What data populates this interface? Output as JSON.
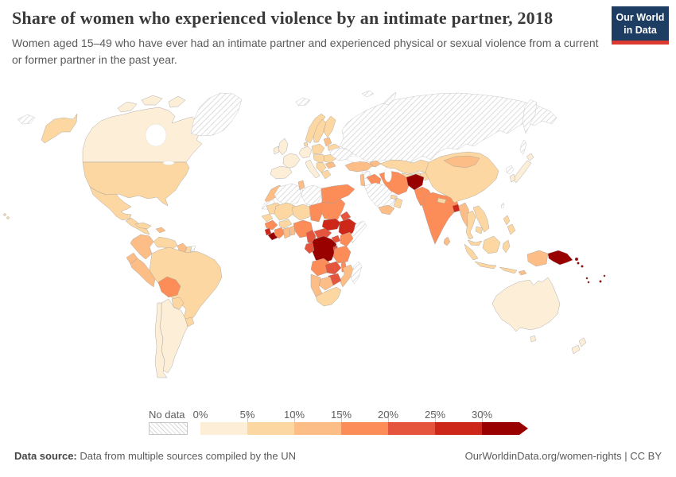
{
  "header": {
    "title": "Share of women who experienced violence by an intimate partner, 2018",
    "subtitle": "Women aged 15–49 who have ever had an intimate partner and experienced physical or sexual violence from a current or former partner in the past year.",
    "logo": {
      "line1": "Our World",
      "line2": "in Data"
    }
  },
  "legend": {
    "no_data_label": "No data",
    "tick_labels": [
      "0%",
      "5%",
      "10%",
      "15%",
      "20%",
      "25%",
      "30%"
    ],
    "bucket_colors": {
      "b1": "#fdeed7",
      "b2": "#fdd7a1",
      "b3": "#fdbd86",
      "b4": "#fc8d59",
      "b5": "#e5553d",
      "b6": "#cc2718",
      "b7": "#990000"
    },
    "no_data_hatch_color": "#d4d4d4",
    "accent_navy": "#1d3d63",
    "accent_red": "#dc3a30"
  },
  "chart_data": {
    "type": "heatmap",
    "title": "Share of women who experienced violence by an intimate partner, 2018",
    "unit": "%",
    "legend_position": "bottom",
    "bucket_ranges": {
      "b1": "0-5%",
      "b2": "5-10%",
      "b3": "10-15%",
      "b4": "15-20%",
      "b5": "20-25%",
      "b6": "25-30%",
      "b7": "30%+",
      "no-data": "No data"
    },
    "country_buckets": {
      "alaska": "b2",
      "usa": "b2",
      "canada": "b1",
      "greenland": "no-data",
      "mexico": "b2",
      "central-america": "b2",
      "cuba": "b2",
      "hispaniola": "b3",
      "hawaii": "b2",
      "colombia": "b3",
      "venezuela": "b2",
      "guyana": "b3",
      "suriname": "b2",
      "french-guiana": "no-data",
      "ecuador": "b3",
      "peru": "b3",
      "brazil": "b2",
      "bolivia": "b4",
      "paraguay": "b2",
      "uruguay": "b2",
      "argentina": "b1",
      "chile": "b1",
      "iceland": "no-data",
      "uk": "b1",
      "ireland": "b1",
      "norway": "b2",
      "sweden": "b2",
      "finland": "b2",
      "denmark": "b2",
      "baltics": "b3",
      "belarus": "b2",
      "poland": "b2",
      "germany": "b1",
      "france": "b1",
      "iberia": "b1",
      "italy": "b1",
      "central-europe": "b2",
      "romania": "b2",
      "balkans": "b2",
      "bulgaria": "b3",
      "greece": "b2",
      "ukraine": "no-data",
      "russia": "no-data",
      "chukotka": "no-data",
      "kamchatka": "no-data",
      "sakhalin": "no-data",
      "svalbard": "no-data",
      "novaya-zemlya": "no-data",
      "kazakhstan": "b2",
      "uzbekistan": "b2",
      "turkmenistan": "b2",
      "kyrgyzstan-tajikistan": "b2",
      "caucasus": "b3",
      "turkey": "b3",
      "syria": "no-data",
      "iraq": "b4",
      "levant": "b3",
      "saudi-arabia": "no-data",
      "yemen": "b3",
      "oman": "b2",
      "uae": "b2",
      "iran": "b4",
      "afghanistan": "b7",
      "pakistan": "b4",
      "india": "b4",
      "nepal": "b2",
      "bangladesh": "b6",
      "sri-lanka": "b3",
      "china": "b2",
      "mongolia": "b3",
      "myanmar": "b3",
      "thailand": "b2",
      "laos-vietnam": "b2",
      "cambodia": "b2",
      "malaysia": "b2",
      "sumatra": "b2",
      "java": "b2",
      "borneo": "b2",
      "sulawesi": "b2",
      "lesser-sunda": "b2",
      "west-papua": "b3",
      "philippines": "b2",
      "taiwan": "no-data",
      "japan": "b1",
      "south-korea": "b1",
      "north-korea": "no-data",
      "morocco": "b3",
      "western-sahara": "no-data",
      "algeria": "no-data",
      "tunisia": "b3",
      "libya": "no-data",
      "egypt": "b4",
      "mauritania": "b2",
      "mali": "b2",
      "niger": "b2",
      "chad": "b4",
      "sudan": "b4",
      "eritrea": "b5",
      "ethiopia": "b6",
      "somalia": "no-data",
      "senegal": "b2",
      "guinea": "b4",
      "sierra-leone": "b6",
      "liberia": "b7",
      "ivory-coast": "b4",
      "ghana": "b3",
      "togo-benin": "b3",
      "burkina-faso": "b2",
      "nigeria": "b4",
      "cameroon": "b5",
      "central-african-republic": "b5",
      "south-sudan": "b6",
      "uganda": "b5",
      "kenya": "b4",
      "drc": "b7",
      "gabon-congo": "b5",
      "rwanda-burundi": "b5",
      "tanzania": "b4",
      "angola": "b4",
      "zambia": "b5",
      "malawi": "b4",
      "mozambique": "b3",
      "zimbabwe": "b5",
      "botswana": "b3",
      "namibia": "b3",
      "south-africa": "b2",
      "madagascar": "no-data",
      "australia": "b1",
      "new-zealand": "b1",
      "papua-new-guinea": "b7",
      "solomon-islands": "b7",
      "vanuatu": "b7",
      "fiji": "b7",
      "timor": "b3"
    }
  },
  "footer": {
    "source_label": "Data source:",
    "source_text": " Data from multiple sources compiled by the UN",
    "right_text": "OurWorldinData.org/women-rights | CC BY"
  }
}
